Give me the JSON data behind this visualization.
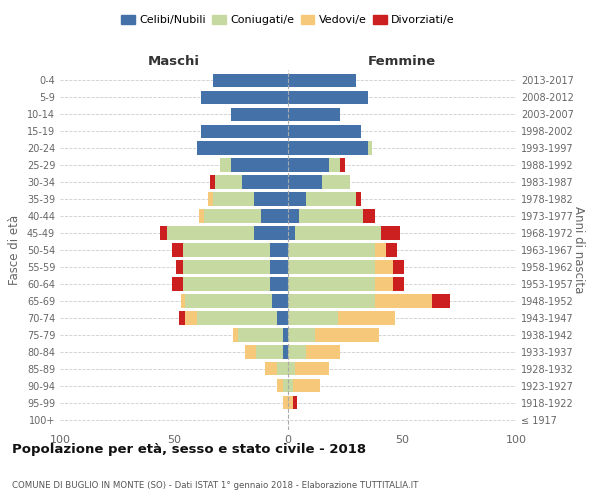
{
  "age_groups": [
    "100+",
    "95-99",
    "90-94",
    "85-89",
    "80-84",
    "75-79",
    "70-74",
    "65-69",
    "60-64",
    "55-59",
    "50-54",
    "45-49",
    "40-44",
    "35-39",
    "30-34",
    "25-29",
    "20-24",
    "15-19",
    "10-14",
    "5-9",
    "0-4"
  ],
  "birth_years": [
    "≤ 1917",
    "1918-1922",
    "1923-1927",
    "1928-1932",
    "1933-1937",
    "1938-1942",
    "1943-1947",
    "1948-1952",
    "1953-1957",
    "1958-1962",
    "1963-1967",
    "1968-1972",
    "1973-1977",
    "1978-1982",
    "1983-1987",
    "1988-1992",
    "1993-1997",
    "1998-2002",
    "2003-2007",
    "2008-2012",
    "2013-2017"
  ],
  "maschi": {
    "celibi": [
      0,
      0,
      0,
      0,
      2,
      2,
      5,
      7,
      8,
      8,
      8,
      15,
      12,
      15,
      20,
      25,
      40,
      38,
      25,
      38,
      33
    ],
    "coniugati": [
      0,
      0,
      2,
      5,
      12,
      20,
      35,
      38,
      38,
      38,
      38,
      38,
      25,
      18,
      12,
      5,
      0,
      0,
      0,
      0,
      0
    ],
    "vedovi": [
      0,
      2,
      3,
      5,
      5,
      2,
      5,
      2,
      0,
      0,
      0,
      0,
      2,
      2,
      0,
      0,
      0,
      0,
      0,
      0,
      0
    ],
    "divorziati": [
      0,
      0,
      0,
      0,
      0,
      0,
      3,
      0,
      5,
      3,
      5,
      3,
      0,
      0,
      2,
      0,
      0,
      0,
      0,
      0,
      0
    ]
  },
  "femmine": {
    "nubili": [
      0,
      0,
      0,
      0,
      0,
      0,
      0,
      0,
      0,
      0,
      0,
      3,
      5,
      8,
      15,
      18,
      35,
      32,
      23,
      35,
      30
    ],
    "coniugate": [
      0,
      0,
      2,
      3,
      8,
      12,
      22,
      38,
      38,
      38,
      38,
      38,
      28,
      22,
      12,
      5,
      2,
      0,
      0,
      0,
      0
    ],
    "vedove": [
      0,
      2,
      12,
      15,
      15,
      28,
      25,
      25,
      8,
      8,
      5,
      0,
      0,
      0,
      0,
      0,
      0,
      0,
      0,
      0,
      0
    ],
    "divorziate": [
      0,
      2,
      0,
      0,
      0,
      0,
      0,
      8,
      5,
      5,
      5,
      8,
      5,
      2,
      0,
      2,
      0,
      0,
      0,
      0,
      0
    ]
  },
  "colors": {
    "celibi": "#4472a8",
    "coniugati": "#c5d9a0",
    "vedovi": "#f5c87a",
    "divorziati": "#cc2020"
  },
  "xlim": 100,
  "title": "Popolazione per età, sesso e stato civile - 2018",
  "subtitle": "COMUNE DI BUGLIO IN MONTE (SO) - Dati ISTAT 1° gennaio 2018 - Elaborazione TUTTITALIA.IT",
  "ylabel": "Fasce di età",
  "ylabel_right": "Anni di nascita",
  "legend_labels": [
    "Celibi/Nubili",
    "Coniugati/e",
    "Vedovi/e",
    "Divorziati/e"
  ]
}
